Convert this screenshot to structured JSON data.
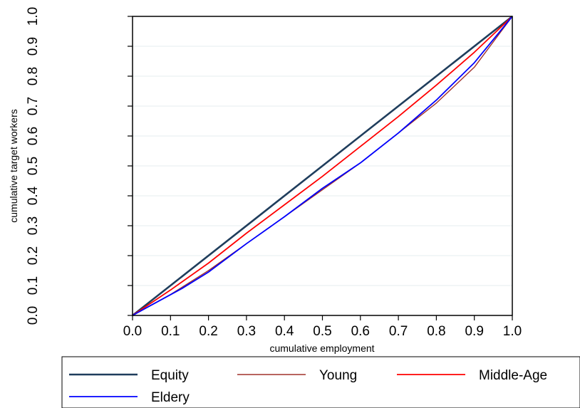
{
  "chart_data": {
    "type": "line",
    "title": "",
    "xlabel": "cumulative employment",
    "ylabel": "cumulative target workers",
    "xlim": [
      0,
      1
    ],
    "ylim": [
      0,
      1
    ],
    "x_ticks": [
      "0.0",
      "0.1",
      "0.2",
      "0.3",
      "0.4",
      "0.5",
      "0.6",
      "0.7",
      "0.8",
      "0.9",
      "1.0"
    ],
    "y_ticks": [
      "0.0",
      "0.1",
      "0.2",
      "0.3",
      "0.4",
      "0.5",
      "0.6",
      "0.7",
      "0.8",
      "0.9",
      "1.0"
    ],
    "grid": "horizontal",
    "legend_position": "bottom",
    "series": [
      {
        "name": "Equity",
        "color": "#1f3d5c",
        "points": [
          [
            0,
            0
          ],
          [
            1,
            1
          ]
        ]
      },
      {
        "name": "Young",
        "color": "#a0302a",
        "points": [
          [
            0,
            0
          ],
          [
            0.1,
            0.07
          ],
          [
            0.2,
            0.15
          ],
          [
            0.3,
            0.24
          ],
          [
            0.4,
            0.33
          ],
          [
            0.5,
            0.42
          ],
          [
            0.6,
            0.51
          ],
          [
            0.7,
            0.61
          ],
          [
            0.8,
            0.71
          ],
          [
            0.9,
            0.83
          ],
          [
            1,
            1
          ]
        ]
      },
      {
        "name": "Middle-Age",
        "color": "#ff0000",
        "points": [
          [
            0,
            0
          ],
          [
            0.1,
            0.085
          ],
          [
            0.2,
            0.175
          ],
          [
            0.3,
            0.275
          ],
          [
            0.4,
            0.37
          ],
          [
            0.5,
            0.465
          ],
          [
            0.6,
            0.565
          ],
          [
            0.7,
            0.665
          ],
          [
            0.8,
            0.77
          ],
          [
            0.9,
            0.88
          ],
          [
            1,
            1
          ]
        ]
      },
      {
        "name": "Eldery",
        "color": "#0000ff",
        "points": [
          [
            0,
            0
          ],
          [
            0.05,
            0.035
          ],
          [
            0.13,
            0.09
          ],
          [
            0.2,
            0.145
          ],
          [
            0.3,
            0.24
          ],
          [
            0.4,
            0.33
          ],
          [
            0.5,
            0.425
          ],
          [
            0.6,
            0.51
          ],
          [
            0.7,
            0.61
          ],
          [
            0.8,
            0.72
          ],
          [
            0.9,
            0.845
          ],
          [
            1,
            1
          ]
        ]
      }
    ],
    "legend_order": [
      "Equity",
      "Young",
      "Middle-Age",
      "Eldery"
    ]
  }
}
